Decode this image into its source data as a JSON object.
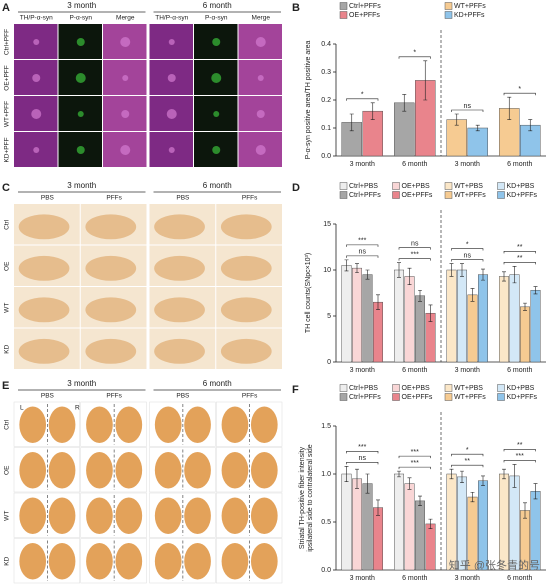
{
  "image_panels": [
    {
      "label": "A",
      "months": [
        "3 month",
        "6 month"
      ],
      "columns": [
        "TH/P-α-syn",
        "P-α-syn",
        "Merge"
      ],
      "rows": [
        "Ctrl+PFF",
        "OE+PFF",
        "WT+PFF",
        "KD+PFF"
      ]
    },
    {
      "label": "C",
      "months": [
        "3 month",
        "6 month"
      ],
      "columns": [
        "PBS",
        "PFFs"
      ],
      "rows": [
        "Ctrl",
        "OE",
        "WT",
        "KD"
      ]
    },
    {
      "label": "E",
      "months": [
        "3 month",
        "6 month"
      ],
      "columns": [
        "PBS",
        "PFFs"
      ],
      "rows": [
        "Ctrl",
        "OE",
        "WT",
        "KD"
      ],
      "side_labels": [
        "L",
        "R"
      ]
    }
  ],
  "watermark": "知乎 @张冬青的号",
  "chart_data": [
    {
      "type": "bar",
      "label": "B",
      "ylabel": [
        "P-α-syn positive area/TH positive area"
      ],
      "categories": [
        "3 month",
        "6 month",
        "3 month",
        "6 month"
      ],
      "series": [
        {
          "name": "Ctrl+PFFs",
          "color": "#a6a6a6",
          "values": [
            0.12,
            0.19,
            null,
            null
          ],
          "errors": [
            0.03,
            0.03,
            null,
            null
          ]
        },
        {
          "name": "OE+PFFs",
          "color": "#e9848c",
          "values": [
            0.16,
            0.27,
            null,
            null
          ],
          "errors": [
            0.03,
            0.07,
            null,
            null
          ]
        },
        {
          "name": "WT+PFFs",
          "color": "#f6cb92",
          "values": [
            null,
            null,
            0.13,
            0.17
          ],
          "errors": [
            null,
            null,
            0.02,
            0.04
          ]
        },
        {
          "name": "KD+PFFs",
          "color": "#8fc4ea",
          "values": [
            null,
            null,
            0.1,
            0.11
          ],
          "errors": [
            null,
            null,
            0.01,
            0.02
          ]
        }
      ],
      "ylim": [
        0,
        0.4
      ],
      "yticks": [
        {
          "value": 0,
          "label": "0.0"
        },
        0.1,
        0.2,
        0.3,
        0.4
      ],
      "annotations": [
        {
          "text": "*",
          "category": 0
        },
        {
          "text": "*",
          "category": 1
        },
        {
          "text": "ns",
          "category": 2
        },
        {
          "text": "*",
          "category": 3
        }
      ]
    },
    {
      "type": "bar",
      "label": "D",
      "ylabel": [
        "TH cell counts(SNpc×10³)"
      ],
      "categories": [
        "3 month",
        "6 month",
        "3 month",
        "6 month"
      ],
      "series": [
        {
          "name": "Ctrl+PBS",
          "color": "#eeeeee",
          "values": [
            10.5,
            10.0,
            null,
            null
          ],
          "errors": [
            0.6,
            0.8,
            null,
            null
          ]
        },
        {
          "name": "OE+PBS",
          "color": "#f9d6d6",
          "values": [
            10.2,
            9.3,
            null,
            null
          ],
          "errors": [
            0.5,
            0.9,
            null,
            null
          ]
        },
        {
          "name": "Ctrl+PFFs",
          "color": "#a6a6a6",
          "values": [
            9.5,
            7.2,
            null,
            null
          ],
          "errors": [
            0.5,
            0.6,
            null,
            null
          ]
        },
        {
          "name": "OE+PFFs",
          "color": "#e9848c",
          "values": [
            6.5,
            5.3,
            null,
            null
          ],
          "errors": [
            0.8,
            0.9,
            null,
            null
          ]
        },
        {
          "name": "WT+PBS",
          "color": "#fbe7c8",
          "values": [
            null,
            null,
            10.0,
            9.3
          ],
          "errors": [
            null,
            null,
            0.7,
            0.5
          ]
        },
        {
          "name": "KD+PBS",
          "color": "#d3e8f7",
          "values": [
            null,
            null,
            10.0,
            9.5
          ],
          "errors": [
            null,
            null,
            0.7,
            0.9
          ]
        },
        {
          "name": "WT+PFFs",
          "color": "#f6cb92",
          "values": [
            null,
            null,
            7.3,
            6.0
          ],
          "errors": [
            null,
            null,
            0.7,
            0.4
          ]
        },
        {
          "name": "KD+PFFs",
          "color": "#8fc4ea",
          "values": [
            null,
            null,
            9.5,
            7.8
          ],
          "errors": [
            null,
            null,
            0.6,
            0.4
          ]
        }
      ],
      "ylim": [
        0,
        15
      ],
      "yticks": [
        0,
        5,
        10,
        15
      ],
      "annotations": [
        {
          "text": "ns",
          "category": 0
        },
        {
          "text": "***",
          "category": 0
        },
        {
          "text": "***",
          "category": 1
        },
        {
          "text": "ns",
          "category": 1
        },
        {
          "text": "ns",
          "category": 2
        },
        {
          "text": "*",
          "category": 2
        },
        {
          "text": "**",
          "category": 3
        },
        {
          "text": "**",
          "category": 3
        }
      ]
    },
    {
      "type": "bar",
      "label": "F",
      "ylabel": [
        "Striatal TH-positive fiber intensity",
        "ipsilateral side to contralateral side"
      ],
      "categories": [
        "3 month",
        "6 month",
        "3 month",
        "6 month"
      ],
      "series": [
        {
          "name": "Ctrl+PBS",
          "color": "#eeeeee",
          "values": [
            1.0,
            1.0,
            null,
            null
          ],
          "errors": [
            0.08,
            0.03,
            null,
            null
          ]
        },
        {
          "name": "OE+PBS",
          "color": "#f9d6d6",
          "values": [
            0.95,
            0.9,
            null,
            null
          ],
          "errors": [
            0.1,
            0.06,
            null,
            null
          ]
        },
        {
          "name": "Ctrl+PFFs",
          "color": "#a6a6a6",
          "values": [
            0.9,
            0.72,
            null,
            null
          ],
          "errors": [
            0.1,
            0.05,
            null,
            null
          ]
        },
        {
          "name": "OE+PFFs",
          "color": "#e9848c",
          "values": [
            0.65,
            0.48,
            null,
            null
          ],
          "errors": [
            0.08,
            0.05,
            null,
            null
          ]
        },
        {
          "name": "WT+PBS",
          "color": "#fbe7c8",
          "values": [
            null,
            null,
            1.0,
            1.0
          ],
          "errors": [
            null,
            null,
            0.05,
            0.05
          ]
        },
        {
          "name": "KD+PBS",
          "color": "#d3e8f7",
          "values": [
            null,
            null,
            0.97,
            0.98
          ],
          "errors": [
            null,
            null,
            0.06,
            0.12
          ]
        },
        {
          "name": "WT+PFFs",
          "color": "#f6cb92",
          "values": [
            null,
            null,
            0.76,
            0.62
          ],
          "errors": [
            null,
            null,
            0.05,
            0.08
          ]
        },
        {
          "name": "KD+PFFs",
          "color": "#8fc4ea",
          "values": [
            null,
            null,
            0.93,
            0.82
          ],
          "errors": [
            null,
            null,
            0.05,
            0.08
          ]
        }
      ],
      "ylim": [
        0,
        1.5
      ],
      "yticks": [
        {
          "value": 0,
          "label": "0.0"
        },
        0.5,
        {
          "value": 1,
          "label": "1.0"
        },
        1.5
      ],
      "annotations": [
        {
          "text": "ns",
          "category": 0
        },
        {
          "text": "***",
          "category": 0
        },
        {
          "text": "***",
          "category": 1
        },
        {
          "text": "***",
          "category": 1
        },
        {
          "text": "**",
          "category": 2
        },
        {
          "text": "*",
          "category": 2
        },
        {
          "text": "***",
          "category": 3
        },
        {
          "text": "**",
          "category": 3
        }
      ]
    }
  ]
}
